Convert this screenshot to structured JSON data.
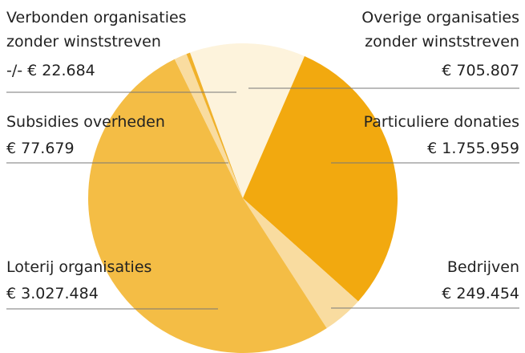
{
  "chart_data": {
    "type": "pie",
    "categories": [
      "Overige organisaties zonder winststreven",
      "Particuliere donaties",
      "Bedrijven",
      "Loterij organisaties",
      "Subsidies overheden",
      "Verbonden organisaties zonder winststreven"
    ],
    "values": [
      705807,
      1755959,
      249454,
      3027484,
      77679,
      -22684
    ],
    "value_labels": [
      "€ 705.807",
      "€ 1.755.959",
      "€ 249.454",
      "€ 3.027.484",
      "€ 77.679",
      "-/- € 22.684"
    ],
    "colors": [
      "#fdf3dc",
      "#f2a90f",
      "#f9dca0",
      "#f4bd45",
      "#f9dca0",
      "#f0b12a"
    ]
  }
}
